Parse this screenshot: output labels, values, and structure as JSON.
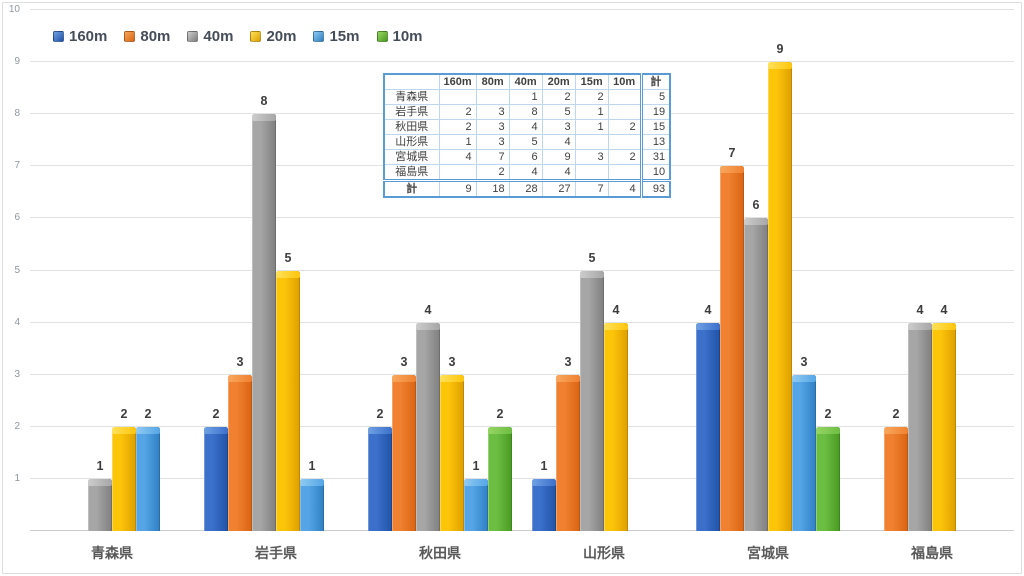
{
  "chart_data": {
    "type": "bar",
    "title": "",
    "xlabel": "",
    "ylabel": "",
    "ylim": [
      0,
      10
    ],
    "yticks": [
      1,
      2,
      3,
      4,
      5,
      6,
      7,
      8,
      9,
      10
    ],
    "grid": true,
    "legend_position": "top-left",
    "categories": [
      "青森県",
      "岩手県",
      "秋田県",
      "山形県",
      "宮城県",
      "福島県"
    ],
    "series": [
      {
        "name": "160m",
        "values": [
          null,
          2,
          2,
          1,
          4,
          null
        ],
        "color": {
          "light": "#3b70cb",
          "dark": "#2153a7",
          "cap": "#6fa1e3"
        }
      },
      {
        "name": "80m",
        "values": [
          null,
          3,
          3,
          3,
          7,
          2
        ],
        "color": {
          "light": "#f08130",
          "dark": "#d96413",
          "cap": "#f8a85e"
        }
      },
      {
        "name": "40m",
        "values": [
          1,
          8,
          4,
          5,
          6,
          4
        ],
        "color": {
          "light": "#a6a6a6",
          "dark": "#7f7f7f",
          "cap": "#cdcdcd"
        }
      },
      {
        "name": "20m",
        "values": [
          2,
          5,
          3,
          4,
          9,
          4
        ],
        "color": {
          "light": "#fdc50a",
          "dark": "#de9f00",
          "cap": "#ffe15a"
        }
      },
      {
        "name": "15m",
        "values": [
          2,
          1,
          1,
          null,
          3,
          null
        ],
        "color": {
          "light": "#55a5e6",
          "dark": "#2e80c3",
          "cap": "#8fcbf2"
        }
      },
      {
        "name": "10m",
        "values": [
          null,
          null,
          2,
          null,
          2,
          null
        ],
        "color": {
          "light": "#6cbe42",
          "dark": "#4a9a22",
          "cap": "#97d563"
        }
      }
    ]
  },
  "table": {
    "col_headers": [
      "",
      "160m",
      "80m",
      "40m",
      "20m",
      "15m",
      "10m",
      "計"
    ],
    "rows": [
      [
        "青森県",
        "",
        "",
        "1",
        "2",
        "2",
        "",
        "5"
      ],
      [
        "岩手県",
        "2",
        "3",
        "8",
        "5",
        "1",
        "",
        "19"
      ],
      [
        "秋田県",
        "2",
        "3",
        "4",
        "3",
        "1",
        "2",
        "15"
      ],
      [
        "山形県",
        "1",
        "3",
        "5",
        "4",
        "",
        "",
        "13"
      ],
      [
        "宮城県",
        "4",
        "7",
        "6",
        "9",
        "3",
        "2",
        "31"
      ],
      [
        "福島県",
        "",
        "2",
        "4",
        "4",
        "",
        "",
        "10"
      ],
      [
        "計",
        "9",
        "18",
        "28",
        "27",
        "7",
        "4",
        "93"
      ]
    ]
  },
  "colors": {
    "gridline": "#e2e2e2",
    "baseline": "#cccccc",
    "axis_label": "#8e979f",
    "category_label": "#595959",
    "value_label": "#3d3d3d",
    "legend_text": "#454d59",
    "table_border_outer": "#5b9bd5",
    "table_border_inner": "#bdd7ee",
    "table_text": "#404040"
  }
}
